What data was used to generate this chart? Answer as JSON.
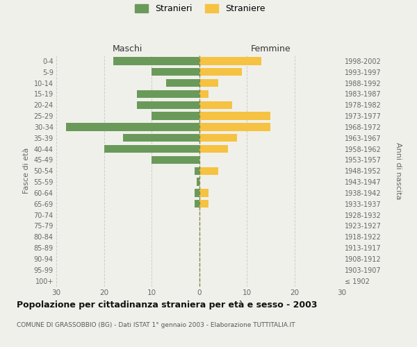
{
  "age_groups": [
    "100+",
    "95-99",
    "90-94",
    "85-89",
    "80-84",
    "75-79",
    "70-74",
    "65-69",
    "60-64",
    "55-59",
    "50-54",
    "45-49",
    "40-44",
    "35-39",
    "30-34",
    "25-29",
    "20-24",
    "15-19",
    "10-14",
    "5-9",
    "0-4"
  ],
  "birth_years": [
    "≤ 1902",
    "1903-1907",
    "1908-1912",
    "1913-1917",
    "1918-1922",
    "1923-1927",
    "1928-1932",
    "1933-1937",
    "1938-1942",
    "1943-1947",
    "1948-1952",
    "1953-1957",
    "1958-1962",
    "1963-1967",
    "1968-1972",
    "1973-1977",
    "1978-1982",
    "1983-1987",
    "1988-1992",
    "1993-1997",
    "1998-2002"
  ],
  "males": [
    0,
    0,
    0,
    0,
    0,
    0,
    0,
    1,
    1,
    0.5,
    1,
    10,
    20,
    16,
    28,
    10,
    13,
    13,
    7,
    10,
    18
  ],
  "females": [
    0,
    0,
    0,
    0,
    0,
    0,
    0,
    2,
    2,
    0,
    4,
    0,
    6,
    8,
    15,
    15,
    7,
    2,
    4,
    9,
    13
  ],
  "male_color": "#6a9a5a",
  "female_color": "#f5c242",
  "background_color": "#f0f0eb",
  "grid_color": "#cccccc",
  "center_line_color": "#888844",
  "xlim": 30,
  "title": "Popolazione per cittadinanza straniera per età e sesso - 2003",
  "subtitle": "COMUNE DI GRASSOBBIO (BG) - Dati ISTAT 1° gennaio 2003 - Elaborazione TUTTITALIA.IT",
  "ylabel_left": "Fasce di età",
  "ylabel_right": "Anni di nascita",
  "legend_stranieri": "Stranieri",
  "legend_straniere": "Straniere",
  "header_maschi": "Maschi",
  "header_femmine": "Femmine"
}
